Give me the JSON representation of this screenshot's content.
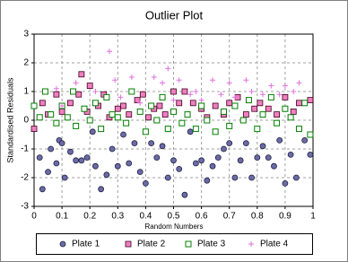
{
  "chart_data": {
    "type": "scatter",
    "title": "Outlier Plot",
    "x_label": "Random Numbers",
    "y_label": "Standardised Residuals",
    "xlim": [
      0,
      1
    ],
    "ylim": [
      -3,
      3
    ],
    "xticks": [
      0,
      0.1,
      0.2,
      0.3,
      0.4,
      0.5,
      0.6,
      0.7,
      0.8,
      0.9,
      1
    ],
    "yticks": [
      -3,
      -2,
      -1,
      0,
      1,
      2,
      3
    ],
    "grid": true,
    "legend": "bottom",
    "series": [
      {
        "name": "Plate 1",
        "color": "#6b6ba8",
        "marker": "circle",
        "x": [
          0.02,
          0.03,
          0.05,
          0.06,
          0.08,
          0.09,
          0.1,
          0.11,
          0.13,
          0.15,
          0.17,
          0.19,
          0.21,
          0.22,
          0.24,
          0.26,
          0.28,
          0.3,
          0.32,
          0.34,
          0.36,
          0.38,
          0.4,
          0.42,
          0.44,
          0.46,
          0.48,
          0.5,
          0.52,
          0.54,
          0.56,
          0.58,
          0.6,
          0.62,
          0.64,
          0.66,
          0.68,
          0.7,
          0.72,
          0.74,
          0.76,
          0.78,
          0.8,
          0.82,
          0.84,
          0.86,
          0.88,
          0.9,
          0.92,
          0.94,
          0.97,
          0.99
        ],
        "values": [
          -1.3,
          -2.4,
          -1.8,
          -1.0,
          -1.5,
          -0.7,
          -0.8,
          -2.0,
          -1.1,
          -1.4,
          -1.4,
          -1.3,
          -0.4,
          -1.6,
          -2.4,
          -1.9,
          -1.0,
          -1.6,
          -0.5,
          -1.5,
          -0.8,
          -1.8,
          -2.2,
          -0.8,
          -1.3,
          -0.9,
          -2.0,
          -1.4,
          -1.7,
          -2.6,
          -0.4,
          -1.5,
          -1.4,
          -2.1,
          -1.6,
          -1.3,
          -1.0,
          -0.8,
          -2.0,
          -1.4,
          -0.8,
          -2.0,
          -1.3,
          -0.9,
          -1.3,
          -1.6,
          -0.7,
          -2.2,
          -1.2,
          -2.0,
          -0.7,
          -1.2
        ]
      },
      {
        "name": "Plate 2",
        "color": "#f080c0",
        "marker": "square",
        "x": [
          0.0,
          0.03,
          0.05,
          0.08,
          0.1,
          0.13,
          0.16,
          0.17,
          0.19,
          0.2,
          0.23,
          0.25,
          0.27,
          0.3,
          0.32,
          0.34,
          0.37,
          0.39,
          0.41,
          0.43,
          0.45,
          0.47,
          0.5,
          0.52,
          0.54,
          0.57,
          0.6,
          0.62,
          0.65,
          0.68,
          0.7,
          0.73,
          0.76,
          0.79,
          0.81,
          0.84,
          0.87,
          0.9,
          0.93,
          0.95,
          0.99
        ],
        "values": [
          -0.3,
          0.6,
          0.2,
          0.9,
          0.3,
          0.6,
          0.9,
          1.6,
          0.3,
          1.2,
          0.5,
          0.9,
          0.1,
          0.4,
          0.5,
          0.2,
          0.7,
          0.9,
          0.1,
          0.4,
          0.5,
          0.2,
          1.0,
          0.6,
          1.0,
          0.6,
          0.4,
          0.1,
          0.5,
          0.2,
          0.6,
          0.8,
          0.2,
          0.4,
          0.6,
          0.4,
          0.2,
          0.8,
          0.3,
          0.6,
          0.7
        ]
      },
      {
        "name": "Plate 3",
        "color": "#008000",
        "marker": "open-square",
        "x": [
          0.0,
          0.02,
          0.04,
          0.06,
          0.08,
          0.1,
          0.12,
          0.14,
          0.15,
          0.18,
          0.2,
          0.22,
          0.24,
          0.26,
          0.28,
          0.3,
          0.33,
          0.35,
          0.38,
          0.4,
          0.42,
          0.44,
          0.46,
          0.48,
          0.5,
          0.53,
          0.55,
          0.58,
          0.6,
          0.62,
          0.65,
          0.68,
          0.7,
          0.72,
          0.75,
          0.77,
          0.8,
          0.82,
          0.85,
          0.87,
          0.9,
          0.92,
          0.95,
          0.97,
          0.99
        ],
        "values": [
          0.5,
          0.1,
          1.0,
          0.2,
          -0.1,
          0.5,
          0.1,
          1.0,
          -0.2,
          0.4,
          0.0,
          0.6,
          -0.3,
          0.8,
          0.2,
          0.1,
          -0.1,
          1.0,
          0.3,
          -0.4,
          0.5,
          0.0,
          0.8,
          -0.3,
          0.3,
          -0.1,
          0.2,
          -0.3,
          0.5,
          0.0,
          -0.4,
          0.3,
          -0.2,
          0.5,
          0.0,
          0.7,
          -0.3,
          0.2,
          0.8,
          -0.1,
          0.4,
          0.1,
          -0.3,
          0.6,
          -0.5
        ]
      },
      {
        "name": "Plate 4",
        "color": "#e070e0",
        "marker": "plus",
        "x": [
          0.08,
          0.1,
          0.15,
          0.22,
          0.27,
          0.29,
          0.31,
          0.35,
          0.38,
          0.43,
          0.46,
          0.48,
          0.5,
          0.52,
          0.56,
          0.58,
          0.6,
          0.64,
          0.67,
          0.7,
          0.72,
          0.76,
          0.78,
          0.82,
          0.85,
          0.88,
          0.9,
          0.93,
          0.95
        ],
        "values": [
          1.1,
          0.5,
          1.3,
          1.0,
          2.4,
          1.4,
          0.8,
          1.5,
          0.6,
          1.5,
          1.3,
          1.8,
          0.7,
          1.4,
          0.9,
          1.0,
          0.7,
          1.4,
          0.9,
          1.3,
          0.8,
          1.4,
          1.0,
          0.9,
          1.2,
          0.9,
          1.2,
          1.0,
          1.3
        ]
      }
    ]
  }
}
